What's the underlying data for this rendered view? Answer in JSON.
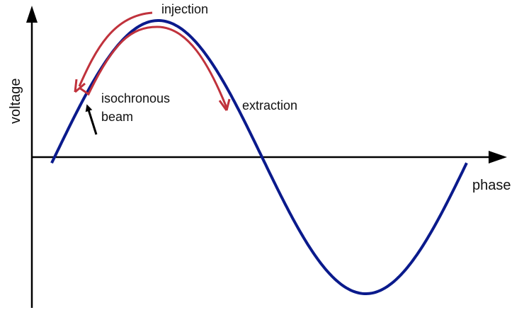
{
  "labels": {
    "injection": "injection",
    "isochronous": "isochronous",
    "beam": "beam",
    "extraction": "extraction",
    "y_axis": "voltage",
    "x_axis": "phase"
  }
}
